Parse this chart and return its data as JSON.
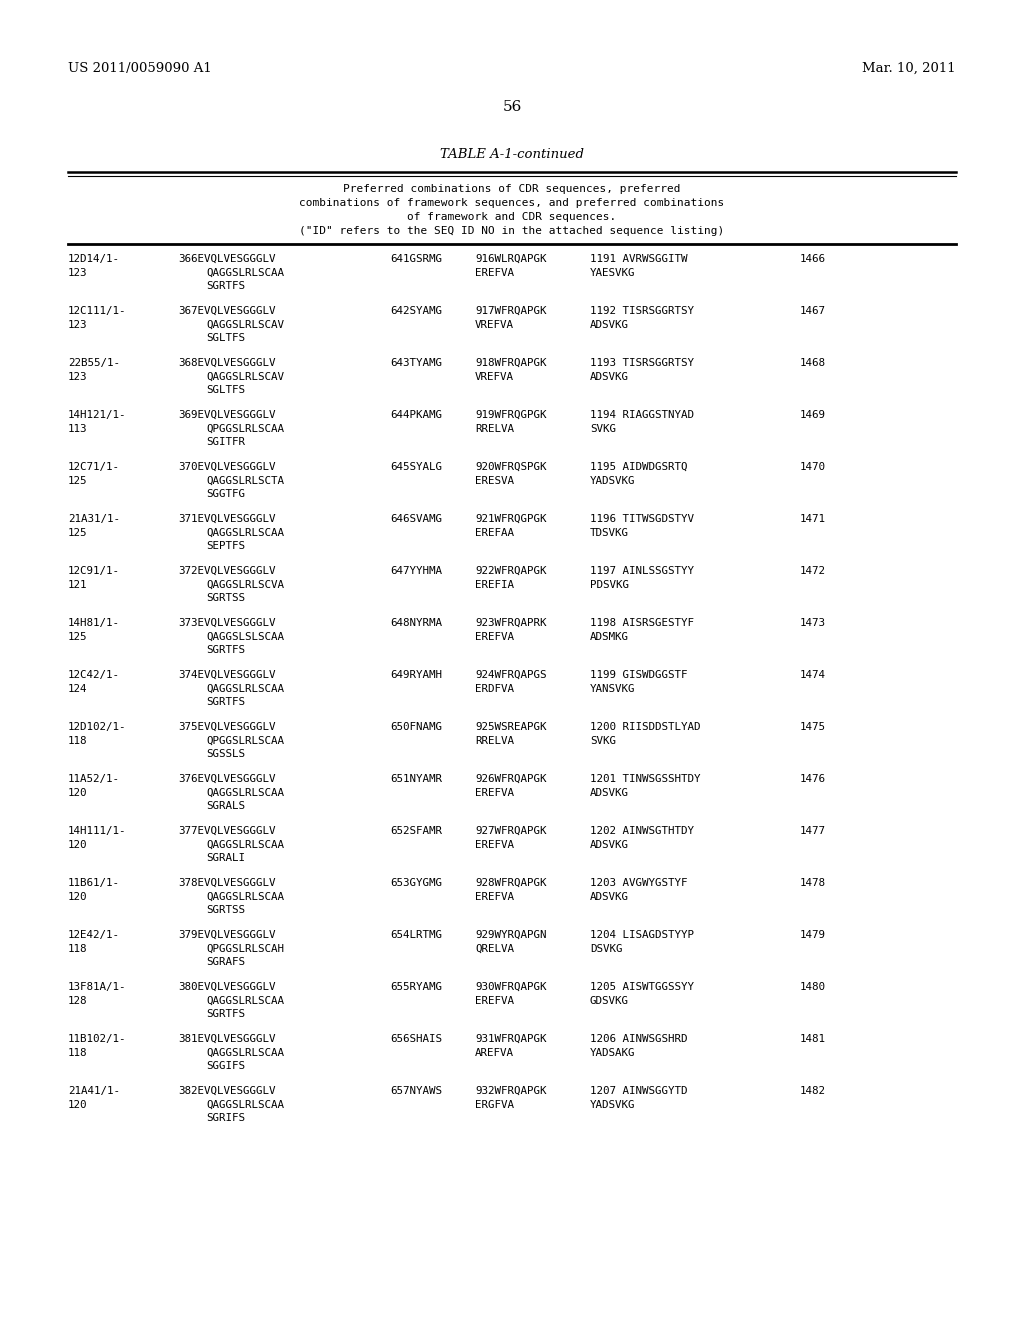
{
  "header_left": "US 2011/0059090 A1",
  "header_right": "Mar. 10, 2011",
  "page_number": "56",
  "table_title": "TABLE A-1-continued",
  "table_desc": [
    "Preferred combinations of CDR sequences, preferred",
    "combinations of framework sequences, and preferred combinations",
    "of framework and CDR sequences.",
    "(\"ID\" refers to the SEQ ID NO in the attached sequence listing)"
  ],
  "rows": [
    {
      "col1": [
        "12D14/1-",
        "123"
      ],
      "col2": [
        "366EVQLVESGGGLV",
        "QAGGSLRLSCAA",
        "SGRTFS"
      ],
      "col3": [
        "641GSRMG"
      ],
      "col4": [
        "916WLRQAPGK",
        "EREFVA"
      ],
      "col5": [
        "1191 AVRWSGGITW",
        "YAESVKG"
      ],
      "col6": "1466"
    },
    {
      "col1": [
        "12C111/1-",
        "123"
      ],
      "col2": [
        "367EVQLVESGGGLV",
        "QAGGSLRLSCAV",
        "SGLTFS"
      ],
      "col3": [
        "642SYAMG"
      ],
      "col4": [
        "917WFRQAPGK",
        "VREFVA"
      ],
      "col5": [
        "1192 TISRSGGRTSY",
        "ADSVKG"
      ],
      "col6": "1467"
    },
    {
      "col1": [
        "22B55/1-",
        "123"
      ],
      "col2": [
        "368EVQLVESGGGLV",
        "QAGGSLRLSCAV",
        "SGLTFS"
      ],
      "col3": [
        "643TYAMG"
      ],
      "col4": [
        "918WFRQAPGK",
        "VREFVA"
      ],
      "col5": [
        "1193 TISRSGGRTSY",
        "ADSVKG"
      ],
      "col6": "1468"
    },
    {
      "col1": [
        "14H121/1-",
        "113"
      ],
      "col2": [
        "369EVQLVESGGGLV",
        "QPGGSLRLSCAA",
        "SGITFR"
      ],
      "col3": [
        "644PKAMG"
      ],
      "col4": [
        "919WFRQGPGK",
        "RRELVA"
      ],
      "col5": [
        "1194 RIAGGSTNYAD",
        "SVKG"
      ],
      "col6": "1469"
    },
    {
      "col1": [
        "12C71/1-",
        "125"
      ],
      "col2": [
        "370EVQLVESGGGLV",
        "QAGGSLRLSCTA",
        "SGGTFG"
      ],
      "col3": [
        "645SYALG"
      ],
      "col4": [
        "920WFRQSPGK",
        "ERESVA"
      ],
      "col5": [
        "1195 AIDWDGSRTQ",
        "YADSVKG"
      ],
      "col6": "1470"
    },
    {
      "col1": [
        "21A31/1-",
        "125"
      ],
      "col2": [
        "371EVQLVESGGGLV",
        "QAGGSLRLSCAA",
        "SEPTFS"
      ],
      "col3": [
        "646SVAMG"
      ],
      "col4": [
        "921WFRQGPGK",
        "EREFAA"
      ],
      "col5": [
        "1196 TITWSGDSTYV",
        "TDSVKG"
      ],
      "col6": "1471"
    },
    {
      "col1": [
        "12C91/1-",
        "121"
      ],
      "col2": [
        "372EVQLVESGGGLV",
        "QAGGSLRLSCVA",
        "SGRTSS"
      ],
      "col3": [
        "647YYHMA"
      ],
      "col4": [
        "922WFRQAPGK",
        "EREFIA"
      ],
      "col5": [
        "1197 AINLSSGSTYY",
        "PDSVKG"
      ],
      "col6": "1472"
    },
    {
      "col1": [
        "14H81/1-",
        "125"
      ],
      "col2": [
        "373EVQLVESGGGLV",
        "QAGGSLSLSCAA",
        "SGRTFS"
      ],
      "col3": [
        "648NYRMA"
      ],
      "col4": [
        "923WFRQAPRK",
        "EREFVA"
      ],
      "col5": [
        "1198 AISRSGESTYF",
        "ADSMKG"
      ],
      "col6": "1473"
    },
    {
      "col1": [
        "12C42/1-",
        "124"
      ],
      "col2": [
        "374EVQLVESGGGLV",
        "QAGGSLRLSCAA",
        "SGRTFS"
      ],
      "col3": [
        "649RYAMH"
      ],
      "col4": [
        "924WFRQAPGS",
        "ERDFVA"
      ],
      "col5": [
        "1199 GISWDGGSTF",
        "YANSVKG"
      ],
      "col6": "1474"
    },
    {
      "col1": [
        "12D102/1-",
        "118"
      ],
      "col2": [
        "375EVQLVESGGGLV",
        "QPGGSLRLSCAA",
        "SGSSLS"
      ],
      "col3": [
        "650FNAMG"
      ],
      "col4": [
        "925WSREAPGK",
        "RRELVA"
      ],
      "col5": [
        "1200 RIISDDSTLYAD",
        "SVKG"
      ],
      "col6": "1475"
    },
    {
      "col1": [
        "11A52/1-",
        "120"
      ],
      "col2": [
        "376EVQLVESGGGLV",
        "QAGGSLRLSCAA",
        "SGRALS"
      ],
      "col3": [
        "651NYAMR"
      ],
      "col4": [
        "926WFRQAPGK",
        "EREFVA"
      ],
      "col5": [
        "1201 TINWSGSSHTDY",
        "ADSVKG"
      ],
      "col6": "1476"
    },
    {
      "col1": [
        "14H111/1-",
        "120"
      ],
      "col2": [
        "377EVQLVESGGGLV",
        "QAGGSLRLSCAA",
        "SGRALI"
      ],
      "col3": [
        "652SFAMR"
      ],
      "col4": [
        "927WFRQAPGK",
        "EREFVA"
      ],
      "col5": [
        "1202 AINWSGTHTDY",
        "ADSVKG"
      ],
      "col6": "1477"
    },
    {
      "col1": [
        "11B61/1-",
        "120"
      ],
      "col2": [
        "378EVQLVESGGGLV",
        "QAGGSLRLSCAA",
        "SGRTSS"
      ],
      "col3": [
        "653GYGMG"
      ],
      "col4": [
        "928WFRQAPGK",
        "EREFVA"
      ],
      "col5": [
        "1203 AVGWYGSTYF",
        "ADSVKG"
      ],
      "col6": "1478"
    },
    {
      "col1": [
        "12E42/1-",
        "118"
      ],
      "col2": [
        "379EVQLVESGGGLV",
        "QPGGSLRLSCAH",
        "SGRAFS"
      ],
      "col3": [
        "654LRTMG"
      ],
      "col4": [
        "929WYRQAPGN",
        "QRELVA"
      ],
      "col5": [
        "1204 LISAGDSTYYP",
        "DSVKG"
      ],
      "col6": "1479"
    },
    {
      "col1": [
        "13F81A/1-",
        "128"
      ],
      "col2": [
        "380EVQLVESGGGLV",
        "QAGGSLRLSCAA",
        "SGRTFS"
      ],
      "col3": [
        "655RYAMG"
      ],
      "col4": [
        "930WFRQAPGK",
        "EREFVA"
      ],
      "col5": [
        "1205 AISWTGGSSYY",
        "GDSVKG"
      ],
      "col6": "1480"
    },
    {
      "col1": [
        "11B102/1-",
        "118"
      ],
      "col2": [
        "381EVQLVESGGGLV",
        "QAGGSLRLSCAA",
        "SGGIFS"
      ],
      "col3": [
        "656SHAIS"
      ],
      "col4": [
        "931WFRQAPGK",
        "AREFVA"
      ],
      "col5": [
        "1206 AINWSGSHRD",
        "YADSAKG"
      ],
      "col6": "1481"
    },
    {
      "col1": [
        "21A41/1-",
        "120"
      ],
      "col2": [
        "382EVQLVESGGGLV",
        "QAGGSLRLSCAA",
        "SGRIFS"
      ],
      "col3": [
        "657NYAWS"
      ],
      "col4": [
        "932WFRQAPGK",
        "ERGFVA"
      ],
      "col5": [
        "1207 AINWSGGYTD",
        "YADSVKG"
      ],
      "col6": "1482"
    }
  ]
}
